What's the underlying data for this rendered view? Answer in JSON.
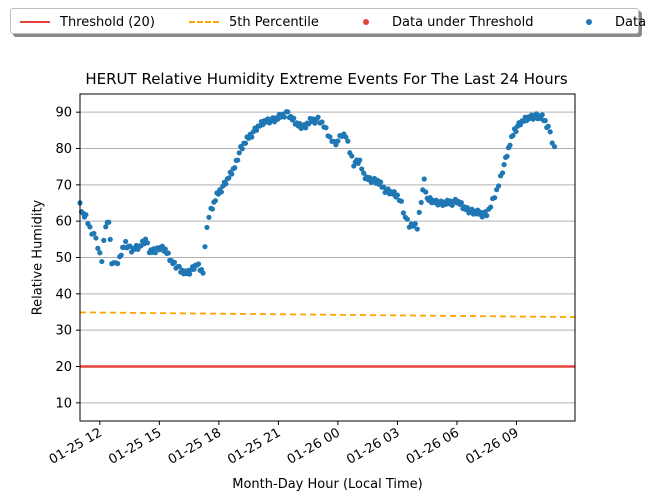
{
  "chart_data": {
    "type": "scatter",
    "title": "HERUT Relative Humidity Extreme Events For The Last 24 Hours",
    "xlabel": "Month-Day Hour (Local Time)",
    "ylabel": "Relative Humidity",
    "x_range_hours": [
      11.0,
      35.95
    ],
    "ylim": [
      5,
      95
    ],
    "yticks": [
      10,
      20,
      30,
      40,
      50,
      60,
      70,
      80,
      90
    ],
    "xticks": [
      {
        "hour": 12,
        "label": "01-25 12"
      },
      {
        "hour": 15,
        "label": "01-25 15"
      },
      {
        "hour": 18,
        "label": "01-25 18"
      },
      {
        "hour": 21,
        "label": "01-25 21"
      },
      {
        "hour": 24,
        "label": "01-26 00"
      },
      {
        "hour": 27,
        "label": "01-26 03"
      },
      {
        "hour": 30,
        "label": "01-26 06"
      },
      {
        "hour": 33,
        "label": "01-26 09"
      }
    ],
    "grid": "horizontal",
    "legend_position": "top",
    "colors": {
      "threshold": "#e8423c",
      "percentile": "#ffa500",
      "under": "#e8423c",
      "data": "#1f77b4"
    },
    "threshold": {
      "name": "Threshold (20)",
      "value": 20
    },
    "percentile": {
      "name": "5th Percentile",
      "start": 34.9,
      "end": 33.6
    },
    "under_threshold": {
      "name": "Data under Threshold",
      "points": []
    },
    "series": {
      "name": "Data",
      "anchors": [
        [
          11.0,
          64.5
        ],
        [
          11.15,
          62
        ],
        [
          11.3,
          61
        ],
        [
          11.5,
          58
        ],
        [
          11.7,
          56.5
        ],
        [
          11.9,
          53
        ],
        [
          12.1,
          49
        ],
        [
          12.3,
          59
        ],
        [
          12.45,
          60
        ],
        [
          12.6,
          49
        ],
        [
          12.8,
          48
        ],
        [
          13.0,
          50
        ],
        [
          13.3,
          54
        ],
        [
          13.6,
          52
        ],
        [
          14.0,
          53
        ],
        [
          14.3,
          55
        ],
        [
          14.5,
          52
        ],
        [
          14.8,
          51.5
        ],
        [
          15.0,
          53
        ],
        [
          15.3,
          52
        ],
        [
          15.6,
          49
        ],
        [
          16.0,
          47
        ],
        [
          16.3,
          45.5
        ],
        [
          16.6,
          46.5
        ],
        [
          16.9,
          48
        ],
        [
          17.2,
          46
        ],
        [
          17.4,
          59
        ],
        [
          17.6,
          63
        ],
        [
          17.9,
          67
        ],
        [
          18.2,
          69.5
        ],
        [
          18.5,
          72
        ],
        [
          18.8,
          75
        ],
        [
          19.1,
          80
        ],
        [
          19.5,
          83
        ],
        [
          19.9,
          85.5
        ],
        [
          20.3,
          87.5
        ],
        [
          20.8,
          88
        ],
        [
          21.2,
          89
        ],
        [
          21.4,
          90
        ],
        [
          21.7,
          88
        ],
        [
          22.0,
          86.5
        ],
        [
          22.3,
          86
        ],
        [
          22.6,
          87.5
        ],
        [
          23.0,
          88
        ],
        [
          23.2,
          87
        ],
        [
          23.4,
          85
        ],
        [
          23.6,
          83
        ],
        [
          23.8,
          81.5
        ],
        [
          24.0,
          82
        ],
        [
          24.2,
          84
        ],
        [
          24.4,
          83.5
        ],
        [
          24.6,
          79
        ],
        [
          24.8,
          76
        ],
        [
          25.1,
          76.5
        ],
        [
          25.3,
          72.5
        ],
        [
          25.6,
          71.5
        ],
        [
          26.0,
          71
        ],
        [
          26.3,
          69
        ],
        [
          26.6,
          68
        ],
        [
          27.0,
          67
        ],
        [
          27.2,
          65
        ],
        [
          27.4,
          61
        ],
        [
          27.6,
          59
        ],
        [
          27.8,
          59
        ],
        [
          28.0,
          58
        ],
        [
          28.2,
          66
        ],
        [
          28.35,
          71
        ],
        [
          28.5,
          66
        ],
        [
          28.8,
          65.5
        ],
        [
          29.2,
          65
        ],
        [
          29.6,
          65
        ],
        [
          30.0,
          65.5
        ],
        [
          30.3,
          64
        ],
        [
          30.6,
          63
        ],
        [
          30.9,
          62.5
        ],
        [
          31.2,
          62
        ],
        [
          31.5,
          62
        ],
        [
          31.7,
          64
        ],
        [
          31.9,
          67
        ],
        [
          32.1,
          70
        ],
        [
          32.3,
          74
        ],
        [
          32.6,
          80
        ],
        [
          32.9,
          85
        ],
        [
          33.2,
          87
        ],
        [
          33.6,
          88.5
        ],
        [
          34.0,
          89
        ],
        [
          34.3,
          88.5
        ],
        [
          34.6,
          86
        ],
        [
          34.8,
          82
        ],
        [
          34.92,
          80.5
        ]
      ],
      "noise": [
        0.9,
        -1.1,
        0.4,
        -0.6,
        1.3,
        -0.3,
        0.7,
        -1.4,
        0.2,
        1.0,
        -0.8,
        0.5,
        -0.2,
        1.2,
        -0.9,
        0.3,
        -0.5,
        0.8,
        -1.2,
        0.1
      ]
    }
  }
}
